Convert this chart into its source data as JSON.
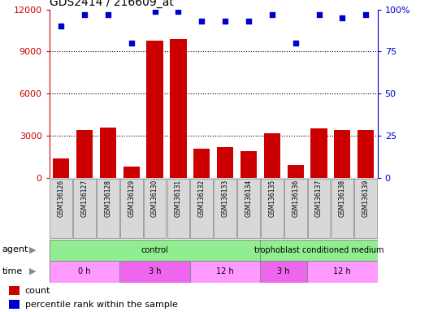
{
  "title": "GDS2414 / 216609_at",
  "samples": [
    "GSM136126",
    "GSM136127",
    "GSM136128",
    "GSM136129",
    "GSM136130",
    "GSM136131",
    "GSM136132",
    "GSM136133",
    "GSM136134",
    "GSM136135",
    "GSM136136",
    "GSM136137",
    "GSM136138",
    "GSM136139"
  ],
  "counts": [
    1400,
    3400,
    3600,
    800,
    9800,
    9900,
    2100,
    2200,
    1900,
    3200,
    900,
    3500,
    3400,
    3400
  ],
  "percentile_ranks": [
    90,
    97,
    97,
    80,
    99,
    99,
    93,
    93,
    93,
    97,
    80,
    97,
    95,
    97
  ],
  "bar_color": "#cc0000",
  "dot_color": "#0000cc",
  "ylim_left": [
    0,
    12000
  ],
  "ylim_right": [
    0,
    100
  ],
  "yticks_left": [
    0,
    3000,
    6000,
    9000,
    12000
  ],
  "yticks_right": [
    0,
    25,
    50,
    75,
    100
  ],
  "yticklabels_right": [
    "0",
    "25",
    "50",
    "75",
    "100%"
  ],
  "agent_groups": [
    {
      "label": "control",
      "start": 0,
      "end": 9,
      "color": "#90EE90"
    },
    {
      "label": "trophoblast conditioned medium",
      "start": 9,
      "end": 14,
      "color": "#90EE90"
    }
  ],
  "time_groups": [
    {
      "label": "0 h",
      "start": 0,
      "end": 3,
      "color": "#FF99FF"
    },
    {
      "label": "3 h",
      "start": 3,
      "end": 6,
      "color": "#EE66EE"
    },
    {
      "label": "12 h",
      "start": 6,
      "end": 9,
      "color": "#FF99FF"
    },
    {
      "label": "3 h",
      "start": 9,
      "end": 11,
      "color": "#EE66EE"
    },
    {
      "label": "12 h",
      "start": 11,
      "end": 14,
      "color": "#FF99FF"
    }
  ],
  "agent_label": "agent",
  "time_label": "time",
  "legend_count_label": "count",
  "legend_pct_label": "percentile rank within the sample",
  "plot_bg_color": "#ffffff",
  "sample_box_color": "#d8d8d8",
  "sample_box_edge": "#999999",
  "tick_color_left": "#cc0000",
  "tick_color_right": "#0000cc"
}
